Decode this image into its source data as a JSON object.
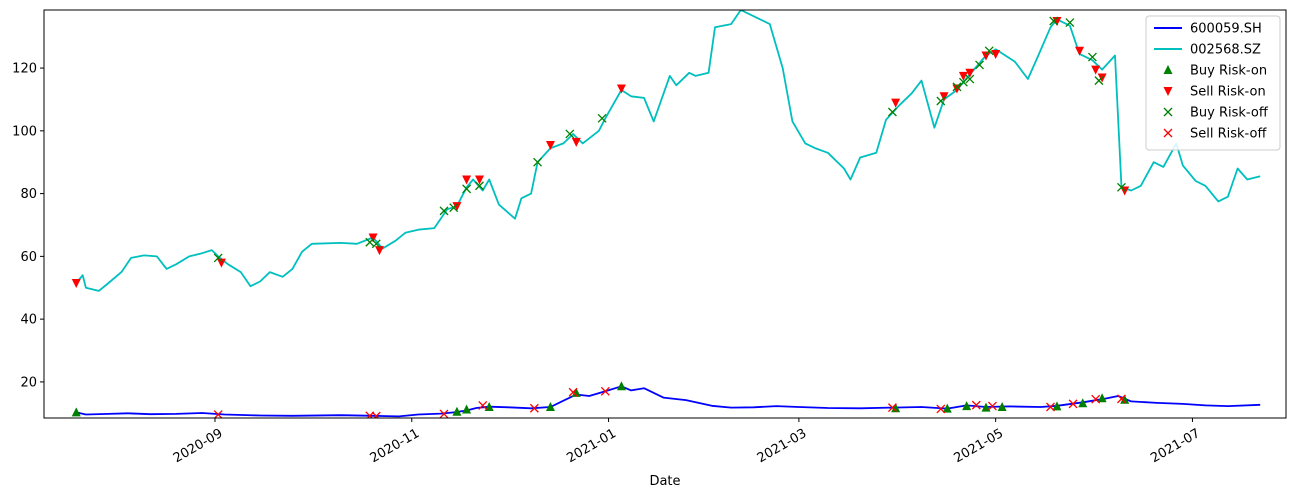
{
  "chart_data": {
    "type": "line",
    "title": "",
    "xlabel": "Date",
    "ylabel": "",
    "x_range": [
      "2020-07-10",
      "2021-07-30"
    ],
    "ylim": [
      8.5,
      138.5
    ],
    "yticks": [
      20,
      40,
      60,
      80,
      100,
      120
    ],
    "xticks": [
      {
        "date": "2020-09-01",
        "label": "2020-09"
      },
      {
        "date": "2020-11-01",
        "label": "2020-11"
      },
      {
        "date": "2021-01-01",
        "label": "2021-01"
      },
      {
        "date": "2021-03-01",
        "label": "2021-03"
      },
      {
        "date": "2021-05-01",
        "label": "2021-05"
      },
      {
        "date": "2021-07-01",
        "label": "2021-07"
      }
    ],
    "grid": false,
    "legend_position": "top-right",
    "series": [
      {
        "name": "600059.SH",
        "kind": "line",
        "color": "#0000ff",
        "points": [
          [
            "2020-07-20",
            10.3
          ],
          [
            "2020-07-23",
            9.6
          ],
          [
            "2020-07-30",
            9.8
          ],
          [
            "2020-08-05",
            10.0
          ],
          [
            "2020-08-12",
            9.7
          ],
          [
            "2020-08-20",
            9.8
          ],
          [
            "2020-08-28",
            10.1
          ],
          [
            "2020-09-04",
            9.6
          ],
          [
            "2020-09-15",
            9.3
          ],
          [
            "2020-09-25",
            9.2
          ],
          [
            "2020-10-10",
            9.4
          ],
          [
            "2020-10-20",
            9.2
          ],
          [
            "2020-10-28",
            9.0
          ],
          [
            "2020-11-03",
            9.6
          ],
          [
            "2020-11-10",
            9.9
          ],
          [
            "2020-11-14",
            10.3
          ],
          [
            "2020-11-18",
            10.9
          ],
          [
            "2020-11-21",
            11.7
          ],
          [
            "2020-11-25",
            12.1
          ],
          [
            "2020-12-01",
            11.9
          ],
          [
            "2020-12-08",
            11.6
          ],
          [
            "2020-12-14",
            12.0
          ],
          [
            "2020-12-18",
            14.0
          ],
          [
            "2020-12-22",
            16.0
          ],
          [
            "2020-12-26",
            15.5
          ],
          [
            "2020-12-31",
            17.0
          ],
          [
            "2021-01-05",
            18.6
          ],
          [
            "2021-01-08",
            17.3
          ],
          [
            "2021-01-12",
            18.0
          ],
          [
            "2021-01-18",
            15.0
          ],
          [
            "2021-01-25",
            14.2
          ],
          [
            "2021-02-02",
            12.4
          ],
          [
            "2021-02-08",
            11.8
          ],
          [
            "2021-02-15",
            11.9
          ],
          [
            "2021-02-22",
            12.3
          ],
          [
            "2021-03-01",
            12.0
          ],
          [
            "2021-03-10",
            11.7
          ],
          [
            "2021-03-20",
            11.6
          ],
          [
            "2021-03-30",
            11.8
          ],
          [
            "2021-04-08",
            12.0
          ],
          [
            "2021-04-16",
            11.5
          ],
          [
            "2021-04-22",
            12.5
          ],
          [
            "2021-04-28",
            12.0
          ],
          [
            "2021-05-05",
            12.2
          ],
          [
            "2021-05-15",
            12.0
          ],
          [
            "2021-05-20",
            12.4
          ],
          [
            "2021-05-28",
            13.5
          ],
          [
            "2021-06-03",
            14.5
          ],
          [
            "2021-06-08",
            15.5
          ],
          [
            "2021-06-12",
            13.8
          ],
          [
            "2021-06-20",
            13.3
          ],
          [
            "2021-06-28",
            13.0
          ],
          [
            "2021-07-05",
            12.5
          ],
          [
            "2021-07-12",
            12.3
          ],
          [
            "2021-07-22",
            12.7
          ]
        ]
      },
      {
        "name": "002568.SZ",
        "kind": "line",
        "color": "#00bfbf",
        "points": [
          [
            "2020-07-20",
            51.5
          ],
          [
            "2020-07-22",
            54.0
          ],
          [
            "2020-07-23",
            50.0
          ],
          [
            "2020-07-27",
            49.0
          ],
          [
            "2020-07-30",
            51.5
          ],
          [
            "2020-08-03",
            55.0
          ],
          [
            "2020-08-06",
            59.5
          ],
          [
            "2020-08-10",
            60.3
          ],
          [
            "2020-08-14",
            60.0
          ],
          [
            "2020-08-17",
            56.0
          ],
          [
            "2020-08-20",
            57.5
          ],
          [
            "2020-08-24",
            60.0
          ],
          [
            "2020-08-28",
            61.0
          ],
          [
            "2020-08-31",
            62.0
          ],
          [
            "2020-09-02",
            60.0
          ],
          [
            "2020-09-05",
            57.5
          ],
          [
            "2020-09-09",
            55.0
          ],
          [
            "2020-09-12",
            50.5
          ],
          [
            "2020-09-15",
            52.0
          ],
          [
            "2020-09-18",
            55.0
          ],
          [
            "2020-09-22",
            53.5
          ],
          [
            "2020-09-25",
            56.0
          ],
          [
            "2020-09-28",
            61.5
          ],
          [
            "2020-10-01",
            64.0
          ],
          [
            "2020-10-10",
            64.3
          ],
          [
            "2020-10-15",
            64.0
          ],
          [
            "2020-10-20",
            66.0
          ],
          [
            "2020-10-23",
            62.5
          ],
          [
            "2020-10-27",
            65.0
          ],
          [
            "2020-10-30",
            67.5
          ],
          [
            "2020-11-03",
            68.5
          ],
          [
            "2020-11-08",
            69.0
          ],
          [
            "2020-11-12",
            75.0
          ],
          [
            "2020-11-15",
            76.0
          ],
          [
            "2020-11-18",
            82.0
          ],
          [
            "2020-11-20",
            84.5
          ],
          [
            "2020-11-23",
            81.0
          ],
          [
            "2020-11-25",
            84.5
          ],
          [
            "2020-11-28",
            76.5
          ],
          [
            "2020-12-03",
            72.0
          ],
          [
            "2020-12-05",
            78.5
          ],
          [
            "2020-12-08",
            80.0
          ],
          [
            "2020-12-10",
            90.0
          ],
          [
            "2020-12-14",
            94.5
          ],
          [
            "2020-12-18",
            96.0
          ],
          [
            "2020-12-21",
            99.0
          ],
          [
            "2020-12-24",
            96.0
          ],
          [
            "2020-12-29",
            100.0
          ],
          [
            "2020-12-31",
            104.0
          ],
          [
            "2021-01-05",
            113.0
          ],
          [
            "2021-01-08",
            111.0
          ],
          [
            "2021-01-12",
            110.5
          ],
          [
            "2021-01-15",
            103.0
          ],
          [
            "2021-01-20",
            117.5
          ],
          [
            "2021-01-22",
            114.5
          ],
          [
            "2021-01-26",
            118.5
          ],
          [
            "2021-01-28",
            117.5
          ],
          [
            "2021-02-01",
            118.5
          ],
          [
            "2021-02-03",
            133.0
          ],
          [
            "2021-02-08",
            134.0
          ],
          [
            "2021-02-11",
            138.5
          ],
          [
            "2021-02-16",
            136.0
          ],
          [
            "2021-02-20",
            134.0
          ],
          [
            "2021-02-24",
            120.0
          ],
          [
            "2021-02-27",
            103.0
          ],
          [
            "2021-03-03",
            96.0
          ],
          [
            "2021-03-06",
            94.5
          ],
          [
            "2021-03-10",
            93.0
          ],
          [
            "2021-03-15",
            88.0
          ],
          [
            "2021-03-17",
            84.5
          ],
          [
            "2021-03-20",
            91.5
          ],
          [
            "2021-03-25",
            93.0
          ],
          [
            "2021-03-28",
            103.5
          ],
          [
            "2021-04-01",
            108.0
          ],
          [
            "2021-04-05",
            112.0
          ],
          [
            "2021-04-08",
            116.0
          ],
          [
            "2021-04-12",
            101.0
          ],
          [
            "2021-04-15",
            110.0
          ],
          [
            "2021-04-19",
            113.0
          ],
          [
            "2021-04-23",
            118.0
          ],
          [
            "2021-04-28",
            124.0
          ],
          [
            "2021-05-01",
            126.0
          ],
          [
            "2021-05-07",
            122.0
          ],
          [
            "2021-05-11",
            116.5
          ],
          [
            "2021-05-14",
            123.5
          ],
          [
            "2021-05-18",
            133.0
          ],
          [
            "2021-05-20",
            135.5
          ],
          [
            "2021-05-24",
            133.5
          ],
          [
            "2021-05-27",
            124.5
          ],
          [
            "2021-05-31",
            122.5
          ],
          [
            "2021-06-03",
            119.5
          ],
          [
            "2021-06-07",
            124.0
          ],
          [
            "2021-06-09",
            82.0
          ],
          [
            "2021-06-12",
            81.0
          ],
          [
            "2021-06-15",
            82.5
          ],
          [
            "2021-06-19",
            90.0
          ],
          [
            "2021-06-22",
            88.5
          ],
          [
            "2021-06-26",
            96.0
          ],
          [
            "2021-06-28",
            89.0
          ],
          [
            "2021-07-02",
            84.0
          ],
          [
            "2021-07-05",
            82.5
          ],
          [
            "2021-07-09",
            77.5
          ],
          [
            "2021-07-12",
            79.0
          ],
          [
            "2021-07-15",
            88.0
          ],
          [
            "2021-07-18",
            84.5
          ],
          [
            "2021-07-22",
            85.5
          ]
        ]
      },
      {
        "name": "Buy Risk-on",
        "kind": "marker",
        "marker": "triangle-up",
        "color": "#008000",
        "points": [
          [
            "2020-07-20",
            10.3
          ],
          [
            "2020-11-15",
            10.5
          ],
          [
            "2020-11-18",
            11.2
          ],
          [
            "2020-11-25",
            12.0
          ],
          [
            "2020-12-14",
            12.0
          ],
          [
            "2020-12-22",
            16.5
          ],
          [
            "2021-01-05",
            18.6
          ],
          [
            "2021-03-31",
            11.6
          ],
          [
            "2021-04-16",
            11.5
          ],
          [
            "2021-04-22",
            12.3
          ],
          [
            "2021-04-28",
            11.8
          ],
          [
            "2021-05-03",
            12.0
          ],
          [
            "2021-05-20",
            12.2
          ],
          [
            "2021-05-28",
            13.2
          ],
          [
            "2021-06-03",
            14.8
          ],
          [
            "2021-06-10",
            14.3
          ]
        ]
      },
      {
        "name": "Sell Risk-on",
        "kind": "marker",
        "marker": "triangle-down",
        "color": "#ff0000",
        "points": [
          [
            "2020-07-20",
            51.5
          ],
          [
            "2020-09-03",
            58.0
          ],
          [
            "2020-10-20",
            66.0
          ],
          [
            "2020-10-22",
            62.0
          ],
          [
            "2020-11-15",
            76.0
          ],
          [
            "2020-11-18",
            84.5
          ],
          [
            "2020-11-22",
            84.5
          ],
          [
            "2020-12-14",
            95.5
          ],
          [
            "2020-12-22",
            96.5
          ],
          [
            "2021-01-05",
            113.5
          ],
          [
            "2021-03-31",
            109.0
          ],
          [
            "2021-04-15",
            111.0
          ],
          [
            "2021-04-19",
            113.5
          ],
          [
            "2021-04-21",
            117.5
          ],
          [
            "2021-04-23",
            118.5
          ],
          [
            "2021-04-28",
            124.0
          ],
          [
            "2021-05-01",
            124.5
          ],
          [
            "2021-05-20",
            135.0
          ],
          [
            "2021-05-27",
            125.5
          ],
          [
            "2021-06-01",
            119.5
          ],
          [
            "2021-06-03",
            117.0
          ],
          [
            "2021-06-10",
            81.0
          ]
        ]
      },
      {
        "name": "Buy Risk-off",
        "kind": "marker",
        "marker": "x",
        "color": "#008000",
        "points": [
          [
            "2020-09-02",
            59.5
          ],
          [
            "2020-10-19",
            64.5
          ],
          [
            "2020-10-21",
            64.0
          ],
          [
            "2020-11-11",
            74.5
          ],
          [
            "2020-11-14",
            75.5
          ],
          [
            "2020-11-18",
            81.5
          ],
          [
            "2020-11-22",
            82.5
          ],
          [
            "2020-12-10",
            90.0
          ],
          [
            "2020-12-20",
            99.0
          ],
          [
            "2020-12-30",
            104.0
          ],
          [
            "2021-03-30",
            106.0
          ],
          [
            "2021-04-14",
            109.5
          ],
          [
            "2021-04-19",
            114.0
          ],
          [
            "2021-04-21",
            115.5
          ],
          [
            "2021-04-23",
            116.5
          ],
          [
            "2021-04-26",
            121.0
          ],
          [
            "2021-04-29",
            125.5
          ],
          [
            "2021-05-19",
            135.0
          ],
          [
            "2021-05-24",
            134.5
          ],
          [
            "2021-05-31",
            123.5
          ],
          [
            "2021-06-02",
            116.0
          ],
          [
            "2021-06-09",
            82.0
          ]
        ]
      },
      {
        "name": "Sell Risk-off",
        "kind": "marker",
        "marker": "x",
        "color": "#ff0000",
        "points": [
          [
            "2020-09-02",
            9.6
          ],
          [
            "2020-10-19",
            9.2
          ],
          [
            "2020-10-21",
            9.1
          ],
          [
            "2020-11-11",
            9.8
          ],
          [
            "2020-11-23",
            12.5
          ],
          [
            "2020-12-09",
            11.6
          ],
          [
            "2020-12-21",
            16.7
          ],
          [
            "2020-12-31",
            17.0
          ],
          [
            "2021-03-30",
            11.8
          ],
          [
            "2021-04-14",
            11.4
          ],
          [
            "2021-04-25",
            12.6
          ],
          [
            "2021-04-30",
            12.3
          ],
          [
            "2021-05-18",
            12.0
          ],
          [
            "2021-05-25",
            13.0
          ],
          [
            "2021-06-01",
            14.5
          ],
          [
            "2021-06-09",
            14.6
          ]
        ]
      }
    ]
  }
}
